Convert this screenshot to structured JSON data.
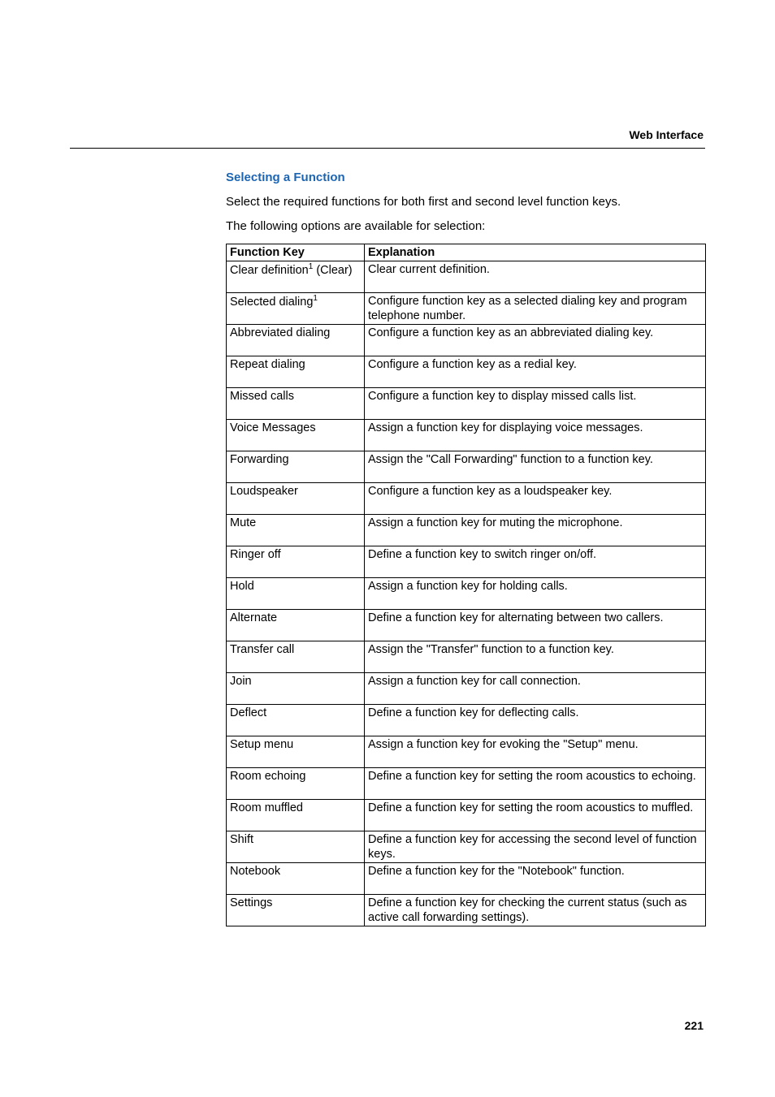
{
  "running_head": "Web Interface",
  "section_heading": "Selecting a Function",
  "heading_color": "#1b65b3",
  "intro_para_1": "Select the required functions for both first and second level function keys.",
  "intro_para_2": "The following options are available for selection:",
  "table": {
    "header": {
      "key": "Function Key",
      "exp": "Explanation"
    },
    "rows": [
      {
        "key_pre": "Clear definition",
        "key_sup": "1",
        "key_post": " (Clear)",
        "exp": "Clear current definition."
      },
      {
        "key_pre": "Selected dialing",
        "key_sup": "1",
        "key_post": "",
        "exp": "Configure function key as a selected dialing key and program telephone number."
      },
      {
        "key_pre": "Abbreviated dialing",
        "key_sup": "",
        "key_post": "",
        "exp": "Configure a function key as an abbreviated dialing key."
      },
      {
        "key_pre": "Repeat dialing",
        "key_sup": "",
        "key_post": "",
        "exp": "Configure a function key as a redial key."
      },
      {
        "key_pre": "Missed calls",
        "key_sup": "",
        "key_post": "",
        "exp": "Configure a function key to display missed calls list."
      },
      {
        "key_pre": "Voice Messages",
        "key_sup": "",
        "key_post": "",
        "exp": "Assign a function key for displaying voice messages."
      },
      {
        "key_pre": "Forwarding",
        "key_sup": "",
        "key_post": "",
        "exp": "Assign the \"Call Forwarding\" function to a function key."
      },
      {
        "key_pre": "Loudspeaker",
        "key_sup": "",
        "key_post": "",
        "exp": "Configure a function key as a loudspeaker key."
      },
      {
        "key_pre": "Mute",
        "key_sup": "",
        "key_post": "",
        "exp": "Assign a function key for muting the microphone."
      },
      {
        "key_pre": "Ringer off",
        "key_sup": "",
        "key_post": "",
        "exp": "Define a function key to switch ringer on/off."
      },
      {
        "key_pre": "Hold",
        "key_sup": "",
        "key_post": "",
        "exp": "Assign a function key for holding calls."
      },
      {
        "key_pre": "Alternate",
        "key_sup": "",
        "key_post": "",
        "exp": "Define a function key for alternating between two callers."
      },
      {
        "key_pre": "Transfer call",
        "key_sup": "",
        "key_post": "",
        "exp": "Assign the \"Transfer\" function to a function key."
      },
      {
        "key_pre": "Join",
        "key_sup": "",
        "key_post": "",
        "exp": "Assign a function key for call connection."
      },
      {
        "key_pre": "Deflect",
        "key_sup": "",
        "key_post": "",
        "exp": "Define a function key for deflecting calls."
      },
      {
        "key_pre": "Setup menu",
        "key_sup": "",
        "key_post": "",
        "exp": "Assign a function key for evoking the \"Setup\" menu."
      },
      {
        "key_pre": "Room echoing",
        "key_sup": "",
        "key_post": "",
        "exp": "Define a function key for setting the room acoustics to echoing."
      },
      {
        "key_pre": "Room muffled",
        "key_sup": "",
        "key_post": "",
        "exp": "Define a function key for setting the room acoustics to muffled."
      },
      {
        "key_pre": "Shift",
        "key_sup": "",
        "key_post": "",
        "exp": "Define a function key for accessing the second level of function keys."
      },
      {
        "key_pre": "Notebook",
        "key_sup": "",
        "key_post": "",
        "exp": "Define a function key for the \"Notebook\" function."
      },
      {
        "key_pre": "Settings",
        "key_sup": "",
        "key_post": "",
        "exp": "Define a function key for checking the current status (such as active call forwarding settings)."
      }
    ]
  },
  "page_number": "221"
}
